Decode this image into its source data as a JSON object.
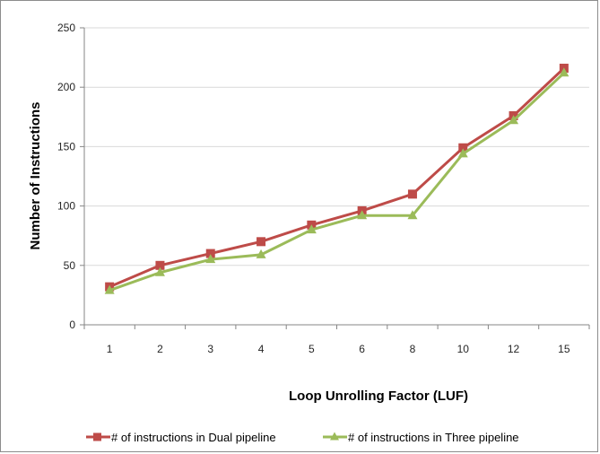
{
  "chart_data": {
    "type": "line",
    "title": "",
    "xlabel": "Loop Unrolling Factor (LUF)",
    "ylabel": "Number of Instructions",
    "categories": [
      "1",
      "2",
      "3",
      "4",
      "5",
      "6",
      "8",
      "10",
      "12",
      "15"
    ],
    "ylim": [
      0,
      250
    ],
    "yticks": [
      0,
      50,
      100,
      150,
      200,
      250
    ],
    "grid": true,
    "legend": "bottom",
    "series": [
      {
        "name": "# of instructions in Dual pipeline",
        "values": [
          32,
          50,
          60,
          70,
          84,
          96,
          110,
          149,
          176,
          216
        ],
        "color": "#be4b48",
        "marker": "square"
      },
      {
        "name": "# of instructions in Three pipeline",
        "values": [
          29,
          44,
          55,
          59,
          80,
          92,
          92,
          144,
          172,
          212
        ],
        "color": "#9bbb59",
        "marker": "triangle"
      }
    ]
  }
}
